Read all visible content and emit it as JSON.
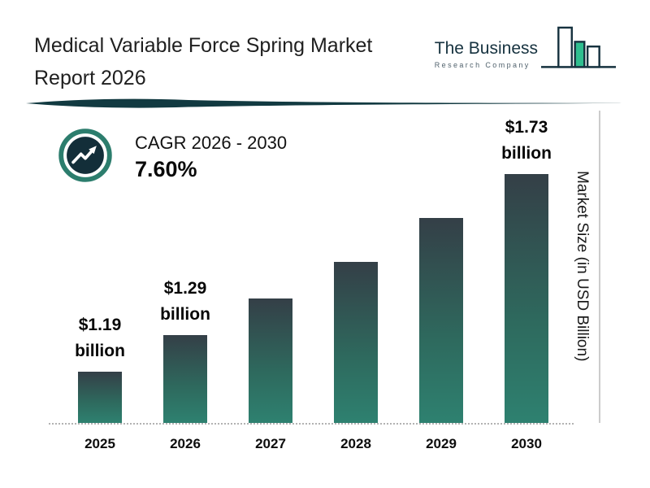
{
  "header": {
    "title_line1": "Medical Variable Force Spring Market",
    "title_line2": "Report 2026",
    "logo": {
      "line1": "The Business",
      "line2": "Research Company"
    }
  },
  "cagr": {
    "label": "CAGR 2026 - 2030",
    "value": "7.60%"
  },
  "chart_data": {
    "type": "bar",
    "title": "Medical Variable Force Spring Market Report 2026",
    "categories": [
      "2025",
      "2026",
      "2027",
      "2028",
      "2029",
      "2030"
    ],
    "values": [
      1.19,
      1.29,
      1.39,
      1.49,
      1.61,
      1.73
    ],
    "bar_labels": [
      {
        "value": "$1.19",
        "unit": "billion"
      },
      {
        "value": "$1.29",
        "unit": "billion"
      },
      null,
      null,
      null,
      {
        "value": "$1.73",
        "unit": "billion"
      }
    ],
    "xlabel": "",
    "ylabel": "Market Size (in USD Billion)",
    "ylim": [
      1.05,
      1.8
    ],
    "grid": false,
    "legend": false
  },
  "colors": {
    "bar_top": "#343f47",
    "bar_bottom": "#2e8170",
    "ring_teal": "#2c7d6d",
    "icon_navy": "#132e39",
    "logo_navy": "#16323f",
    "logo_green": "#2fbe8f",
    "divider": "#123a41"
  }
}
